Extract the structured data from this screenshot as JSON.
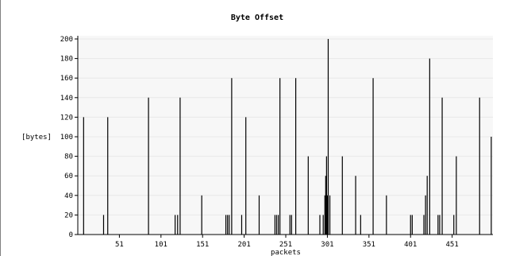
{
  "chart_data": {
    "type": "bar",
    "title": "Byte Offset",
    "xlabel": "packets",
    "ylabel": "[bytes]",
    "xlim": [
      1,
      500
    ],
    "ylim": [
      0,
      200
    ],
    "x_ticks": [
      51,
      101,
      151,
      201,
      251,
      301,
      351,
      401,
      451
    ],
    "y_ticks": [
      0,
      20,
      40,
      60,
      80,
      100,
      120,
      140,
      160,
      180,
      200
    ],
    "grid": true,
    "legend": "none",
    "colors": {
      "bar": "#000000",
      "grid": "#e8e8e8",
      "background": "#f7f7f7"
    },
    "x": [
      8,
      32,
      37,
      86,
      118,
      121,
      124,
      150,
      179,
      181,
      183,
      186,
      198,
      203,
      219,
      238,
      240,
      242,
      244,
      256,
      258,
      263,
      278,
      292,
      296,
      298,
      299,
      300,
      301,
      302,
      304,
      319,
      335,
      341,
      356,
      372,
      401,
      403,
      417,
      419,
      421,
      424,
      434,
      436,
      439,
      453,
      456,
      484,
      498
    ],
    "values": [
      120,
      20,
      120,
      140,
      20,
      20,
      140,
      40,
      20,
      20,
      20,
      160,
      20,
      120,
      40,
      20,
      20,
      20,
      160,
      20,
      20,
      160,
      80,
      20,
      20,
      40,
      60,
      80,
      40,
      200,
      40,
      80,
      60,
      20,
      160,
      40,
      20,
      20,
      20,
      40,
      60,
      180,
      20,
      20,
      140,
      20,
      80,
      140,
      100
    ]
  }
}
